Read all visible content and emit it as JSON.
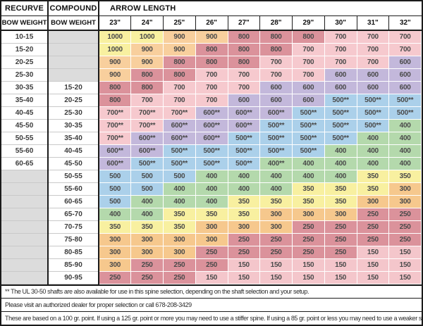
{
  "chart_data": {
    "type": "table",
    "header": {
      "recurve": "RECURVE",
      "compound": "COMPOUND",
      "arrow_length": "ARROW LENGTH",
      "bow_weight_recurve": "BOW WEIGHT",
      "bow_weight_compound": "BOW WEIGHT",
      "lengths": [
        "23\"",
        "24\"",
        "25\"",
        "26\"",
        "27\"",
        "28\"",
        "29\"",
        "30\"",
        "31\"",
        "32\""
      ]
    },
    "rows": [
      {
        "recurve": "10-15",
        "compound": "",
        "spines": [
          "1000",
          "1000",
          "900",
          "900",
          "800",
          "800",
          "800",
          "700",
          "700",
          "700"
        ]
      },
      {
        "recurve": "15-20",
        "compound": "",
        "spines": [
          "1000",
          "900",
          "900",
          "800",
          "800",
          "800",
          "700",
          "700",
          "700",
          "700"
        ]
      },
      {
        "recurve": "20-25",
        "compound": "",
        "spines": [
          "900",
          "900",
          "800",
          "800",
          "800",
          "700",
          "700",
          "700",
          "700",
          "600"
        ]
      },
      {
        "recurve": "25-30",
        "compound": "",
        "spines": [
          "900",
          "800",
          "800",
          "700",
          "700",
          "700",
          "700",
          "600",
          "600",
          "600"
        ]
      },
      {
        "recurve": "30-35",
        "compound": "15-20",
        "spines": [
          "800",
          "800",
          "700",
          "700",
          "700",
          "600",
          "600",
          "600",
          "600",
          "600"
        ]
      },
      {
        "recurve": "35-40",
        "compound": "20-25",
        "spines": [
          "800",
          "700",
          "700",
          "700",
          "600",
          "600",
          "600",
          "500**",
          "500**",
          "500**"
        ]
      },
      {
        "recurve": "40-45",
        "compound": "25-30",
        "spines": [
          "700**",
          "700**",
          "700**",
          "600**",
          "600**",
          "600**",
          "500**",
          "500**",
          "500**",
          "500**"
        ]
      },
      {
        "recurve": "45-50",
        "compound": "30-35",
        "spines": [
          "700**",
          "700**",
          "600**",
          "600**",
          "600**",
          "500**",
          "500**",
          "500**",
          "500**",
          "400"
        ]
      },
      {
        "recurve": "50-55",
        "compound": "35-40",
        "spines": [
          "700**",
          "600**",
          "600**",
          "600**",
          "500**",
          "500**",
          "500**",
          "500**",
          "400",
          "400"
        ]
      },
      {
        "recurve": "55-60",
        "compound": "40-45",
        "spines": [
          "600**",
          "600**",
          "500**",
          "500**",
          "500**",
          "500**",
          "500**",
          "400",
          "400",
          "400"
        ]
      },
      {
        "recurve": "60-65",
        "compound": "45-50",
        "spines": [
          "600**",
          "500**",
          "500**",
          "500**",
          "500**",
          "400**",
          "400",
          "400",
          "400",
          "400"
        ]
      },
      {
        "recurve": "",
        "compound": "50-55",
        "spines": [
          "500",
          "500",
          "500",
          "400",
          "400",
          "400",
          "400",
          "400",
          "350",
          "350"
        ]
      },
      {
        "recurve": "",
        "compound": "55-60",
        "spines": [
          "500",
          "500",
          "400",
          "400",
          "400",
          "400",
          "350",
          "350",
          "350",
          "300"
        ]
      },
      {
        "recurve": "",
        "compound": "60-65",
        "spines": [
          "500",
          "400",
          "400",
          "400",
          "350",
          "350",
          "350",
          "350",
          "300",
          "300"
        ]
      },
      {
        "recurve": "",
        "compound": "65-70",
        "spines": [
          "400",
          "400",
          "350",
          "350",
          "350",
          "300",
          "300",
          "300",
          "250",
          "250"
        ]
      },
      {
        "recurve": "",
        "compound": "70-75",
        "spines": [
          "350",
          "350",
          "350",
          "300",
          "300",
          "300",
          "250",
          "250",
          "250",
          "250"
        ]
      },
      {
        "recurve": "",
        "compound": "75-80",
        "spines": [
          "300",
          "300",
          "300",
          "300",
          "250",
          "250",
          "250",
          "250",
          "250",
          "250"
        ]
      },
      {
        "recurve": "",
        "compound": "80-85",
        "spines": [
          "300",
          "300",
          "300",
          "250",
          "250",
          "250",
          "250",
          "250",
          "150",
          "150"
        ]
      },
      {
        "recurve": "",
        "compound": "85-90",
        "spines": [
          "300",
          "250",
          "250",
          "250",
          "150",
          "150",
          "150",
          "150",
          "150",
          "150"
        ]
      },
      {
        "recurve": "",
        "compound": "90-95",
        "spines": [
          "250",
          "250",
          "250",
          "150",
          "150",
          "150",
          "150",
          "150",
          "150",
          "150"
        ]
      }
    ],
    "spine_colors": {
      "1000": "#f8f0a0",
      "900": "#f8cf9d",
      "800": "#db929b",
      "700": "#f6c9ce",
      "600": "#c3b8db",
      "500": "#abd0ea",
      "400": "#b4d9ac",
      "350": "#f8f0a0",
      "300": "#f6c88d",
      "250": "#db929b",
      "150": "#f4c6cb"
    },
    "empty_cell_color": "#dcdcdc"
  },
  "footnotes": [
    "** The UL 30-50 shafts are also available for use in this spine selection, depending on the shaft selection and your setup.",
    "Please visit an authorized dealer for proper selection or call 678-208-3429",
    "These are based on a 100 gr. point. If using a 125 gr. point or more you may need to use a stiffer spine. If using a 85 gr. point or less you may need to use a weaker spine."
  ]
}
